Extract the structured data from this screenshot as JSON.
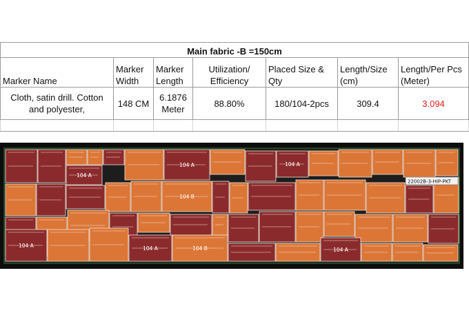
{
  "table": {
    "title": "Main fabric -B =150cm",
    "headers": [
      "Marker Name",
      "Marker Width",
      "Marker Length",
      "Utilization/ Efficiency",
      "Placed Size & Qty",
      "Length/Size (cm)",
      "Length/Per Pcs (Meter)"
    ],
    "row": {
      "name": "Cloth, satin drill. Cotton and polyester,",
      "width": "148 CM",
      "length": "6.1876 Meter",
      "efficiency": "88.80%",
      "placed": "180/104-2pcs",
      "length_size": "309.4",
      "length_pcs": "3.094"
    }
  },
  "marker": {
    "piece_label_a": "104 A",
    "piece_label_b": "104 B",
    "piece_label_short": "104",
    "tag": "22002B-3-HIP-PKT",
    "colors": {
      "maroon": "#8b2a2c",
      "orange": "#dc7636",
      "background": "#0d0d0d"
    }
  }
}
